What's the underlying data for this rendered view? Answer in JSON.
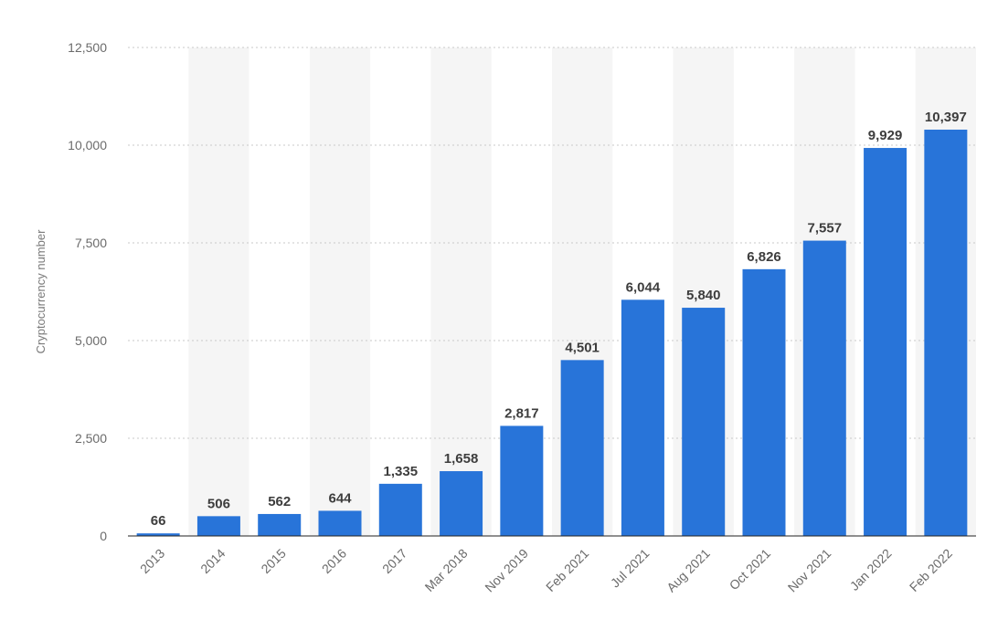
{
  "chart_data": {
    "type": "bar",
    "title": "",
    "xlabel": "",
    "ylabel": "Cryptocurrency number",
    "ylim": [
      0,
      12500
    ],
    "yticks": [
      0,
      2500,
      5000,
      7500,
      10000,
      12500
    ],
    "ytick_labels": [
      "0",
      "2,500",
      "5,000",
      "7,500",
      "10,000",
      "12,500"
    ],
    "grid": true,
    "legend": "none",
    "bar_color": "#2874d9",
    "categories": [
      "2013",
      "2014",
      "2015",
      "2016",
      "2017",
      "Mar 2018",
      "Nov 2019",
      "Feb 2021",
      "Jul 2021",
      "Aug 2021",
      "Oct 2021",
      "Nov 2021",
      "Jan 2022",
      "Feb 2022"
    ],
    "values": [
      66,
      506,
      562,
      644,
      1335,
      1658,
      2817,
      4501,
      6044,
      5840,
      6826,
      7557,
      9929,
      10397
    ],
    "value_labels": [
      "66",
      "506",
      "562",
      "644",
      "1,335",
      "1,658",
      "2,817",
      "4,501",
      "6,044",
      "5,840",
      "6,826",
      "7,557",
      "9,929",
      "10,397"
    ]
  }
}
